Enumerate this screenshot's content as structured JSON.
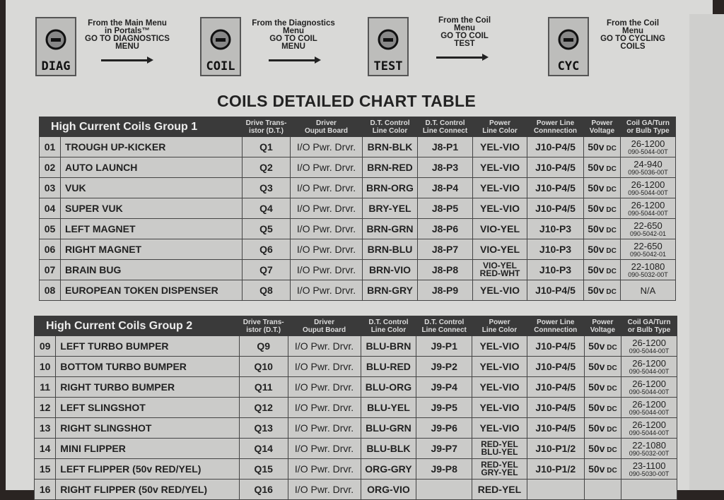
{
  "steps": [
    {
      "icon": "diag-magnifier-icon",
      "label": "DIAG",
      "text": [
        "From the Main Menu",
        "in Portals™",
        "GO TO DIAGNOSTICS",
        "MENU"
      ]
    },
    {
      "icon": "coil-icon",
      "label": "COIL",
      "text": [
        "From the Diagnostics",
        "Menu",
        "GO TO COIL",
        "MENU"
      ]
    },
    {
      "icon": "coil-test-icon",
      "label": "TEST",
      "text": [
        "From the Coil",
        "Menu",
        "GO TO COIL",
        "TEST"
      ]
    },
    {
      "icon": "cycle-icon",
      "label": "CYC",
      "text": [
        "From the Coil",
        "Menu",
        "GO TO CYCLING",
        "COILS"
      ]
    }
  ],
  "title": "COILS DETAILED CHART TABLE",
  "columns": [
    "Drive Trans-|istor (D.T.)",
    "Driver|Ouput Board",
    "D.T. Control|Line Color",
    "D.T. Control|Line Connect",
    "Power|Line Color",
    "Power Line|Connnection",
    "Power|Voltage",
    "Coil GA/Turn|or Bulb Type"
  ],
  "groups": [
    {
      "name": "High Current Coils Group 1",
      "rows": [
        [
          "01",
          "TROUGH UP-KICKER",
          "Q1",
          "I/O Pwr. Drvr.",
          "BRN-BLK",
          "J8-P1",
          "YEL-VIO",
          "J10-P4/5",
          "50v DC",
          "26-1200",
          "090-5044-00T"
        ],
        [
          "02",
          "AUTO LAUNCH",
          "Q2",
          "I/O Pwr. Drvr.",
          "BRN-RED",
          "J8-P3",
          "YEL-VIO",
          "J10-P4/5",
          "50v DC",
          "24-940",
          "090-5036-00T"
        ],
        [
          "03",
          "VUK",
          "Q3",
          "I/O Pwr. Drvr.",
          "BRN-ORG",
          "J8-P4",
          "YEL-VIO",
          "J10-P4/5",
          "50v DC",
          "26-1200",
          "090-5044-00T"
        ],
        [
          "04",
          "SUPER VUK",
          "Q4",
          "I/O Pwr. Drvr.",
          "BRY-YEL",
          "J8-P5",
          "YEL-VIO",
          "J10-P4/5",
          "50v DC",
          "26-1200",
          "090-5044-00T"
        ],
        [
          "05",
          "LEFT MAGNET",
          "Q5",
          "I/O Pwr. Drvr.",
          "BRN-GRN",
          "J8-P6",
          "VIO-YEL",
          "J10-P3",
          "50v DC",
          "22-650",
          "090-5042-01"
        ],
        [
          "06",
          "RIGHT MAGNET",
          "Q6",
          "I/O Pwr. Drvr.",
          "BRN-BLU",
          "J8-P7",
          "VIO-YEL",
          "J10-P3",
          "50v DC",
          "22-650",
          "090-5042-01"
        ],
        [
          "07",
          "BRAIN BUG",
          "Q7",
          "I/O Pwr. Drvr.",
          "BRN-VIO",
          "J8-P8",
          "VIO-YEL|RED-WHT",
          "J10-P3",
          "50v DC",
          "22-1080",
          "090-5032-00T"
        ],
        [
          "08",
          "EUROPEAN TOKEN DISPENSER",
          "Q8",
          "I/O Pwr. Drvr.",
          "BRN-GRY",
          "J8-P9",
          "YEL-VIO",
          "J10-P4/5",
          "50v DC",
          "N/A",
          ""
        ]
      ]
    },
    {
      "name": "High Current Coils Group 2",
      "rows": [
        [
          "09",
          "LEFT TURBO BUMPER",
          "Q9",
          "I/O Pwr. Drvr.",
          "BLU-BRN",
          "J9-P1",
          "YEL-VIO",
          "J10-P4/5",
          "50v DC",
          "26-1200",
          "090-5044-00T"
        ],
        [
          "10",
          "BOTTOM TURBO BUMPER",
          "Q10",
          "I/O Pwr. Drvr.",
          "BLU-RED",
          "J9-P2",
          "YEL-VIO",
          "J10-P4/5",
          "50v DC",
          "26-1200",
          "090-5044-00T"
        ],
        [
          "11",
          "RIGHT TURBO BUMPER",
          "Q11",
          "I/O Pwr. Drvr.",
          "BLU-ORG",
          "J9-P4",
          "YEL-VIO",
          "J10-P4/5",
          "50v DC",
          "26-1200",
          "090-5044-00T"
        ],
        [
          "12",
          "LEFT SLINGSHOT",
          "Q12",
          "I/O Pwr. Drvr.",
          "BLU-YEL",
          "J9-P5",
          "YEL-VIO",
          "J10-P4/5",
          "50v DC",
          "26-1200",
          "090-5044-00T"
        ],
        [
          "13",
          "RIGHT SLINGSHOT",
          "Q13",
          "I/O Pwr. Drvr.",
          "BLU-GRN",
          "J9-P6",
          "YEL-VIO",
          "J10-P4/5",
          "50v DC",
          "26-1200",
          "090-5044-00T"
        ],
        [
          "14",
          "MINI FLIPPER",
          "Q14",
          "I/O Pwr. Drvr.",
          "BLU-BLK",
          "J9-P7",
          "RED-YEL|BLU-YEL",
          "J10-P1/2",
          "50v DC",
          "22-1080",
          "090-5032-00T"
        ],
        [
          "15",
          "LEFT FLIPPER (50v RED/YEL)",
          "Q15",
          "I/O Pwr. Drvr.",
          "ORG-GRY",
          "J9-P8",
          "RED-YEL|GRY-YEL",
          "J10-P1/2",
          "50v DC",
          "23-1100",
          "090-5030-00T"
        ],
        [
          "16",
          "RIGHT FLIPPER (50v RED/YEL)",
          "Q16",
          "I/O Pwr. Drvr.",
          "ORG-VIO",
          "",
          "RED-YEL",
          "",
          "",
          "",
          ""
        ]
      ]
    }
  ]
}
